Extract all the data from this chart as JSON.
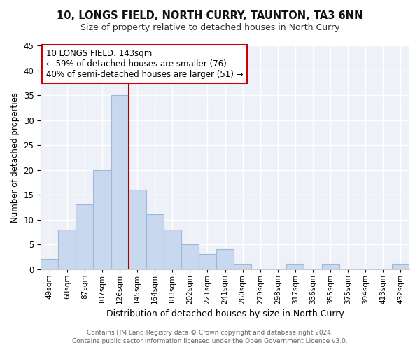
{
  "title": "10, LONGS FIELD, NORTH CURRY, TAUNTON, TA3 6NN",
  "subtitle": "Size of property relative to detached houses in North Curry",
  "xlabel": "Distribution of detached houses by size in North Curry",
  "ylabel": "Number of detached properties",
  "bar_color": "#c8d8ee",
  "bar_edge_color": "#a0b8d8",
  "background_color": "#eef2f8",
  "categories": [
    "49sqm",
    "68sqm",
    "87sqm",
    "107sqm",
    "126sqm",
    "145sqm",
    "164sqm",
    "183sqm",
    "202sqm",
    "221sqm",
    "241sqm",
    "260sqm",
    "279sqm",
    "298sqm",
    "317sqm",
    "336sqm",
    "355sqm",
    "375sqm",
    "394sqm",
    "413sqm",
    "432sqm"
  ],
  "values": [
    2,
    8,
    13,
    20,
    35,
    16,
    11,
    8,
    5,
    3,
    4,
    1,
    0,
    0,
    1,
    0,
    1,
    0,
    0,
    0,
    1
  ],
  "ylim": [
    0,
    45
  ],
  "yticks": [
    0,
    5,
    10,
    15,
    20,
    25,
    30,
    35,
    40,
    45
  ],
  "marker_index": 5,
  "marker_color": "#aa0000",
  "annotation_title": "10 LONGS FIELD: 143sqm",
  "annotation_line1": "← 59% of detached houses are smaller (76)",
  "annotation_line2": "40% of semi-detached houses are larger (51) →",
  "footer1": "Contains HM Land Registry data © Crown copyright and database right 2024.",
  "footer2": "Contains public sector information licensed under the Open Government Licence v3.0."
}
